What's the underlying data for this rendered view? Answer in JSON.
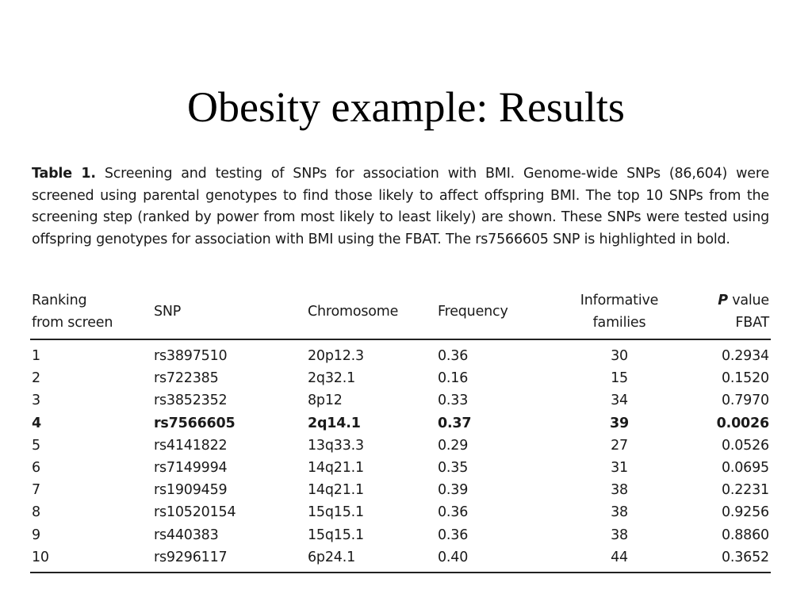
{
  "title": "Obesity example: Results",
  "caption": {
    "label": "Table 1.",
    "text": "Screening and testing of SNPs for association with BMI. Genome-wide SNPs (86,604) were screened using parental genotypes to find those likely to affect offspring BMI. The top 10 SNPs from the screening step (ranked by power from most likely to least likely) are shown. These SNPs were tested using offspring genotypes for association with BMI using the FBAT. The rs7566605 SNP is highlighted in bold."
  },
  "table": {
    "headers": {
      "ranking_line1": "Ranking",
      "ranking_line2": "from screen",
      "snp": "SNP",
      "chromosome": "Chromosome",
      "frequency": "Frequency",
      "families_line1": "Informative",
      "families_line2": "families",
      "pvalue_p": "P",
      "pvalue_line1_rest": " value",
      "pvalue_line2": "FBAT"
    },
    "rows": [
      {
        "rank": "1",
        "snp": "rs3897510",
        "chromosome": "20p12.3",
        "frequency": "0.36",
        "families": "30",
        "pvalue": "0.2934"
      },
      {
        "rank": "2",
        "snp": "rs722385",
        "chromosome": "2q32.1",
        "frequency": "0.16",
        "families": "15",
        "pvalue": "0.1520"
      },
      {
        "rank": "3",
        "snp": "rs3852352",
        "chromosome": "8p12",
        "frequency": "0.33",
        "families": "34",
        "pvalue": "0.7970"
      },
      {
        "rank": "4",
        "snp": "rs7566605",
        "chromosome": "2q14.1",
        "frequency": "0.37",
        "families": "39",
        "pvalue": "0.0026"
      },
      {
        "rank": "5",
        "snp": "rs4141822",
        "chromosome": "13q33.3",
        "frequency": "0.29",
        "families": "27",
        "pvalue": "0.0526"
      },
      {
        "rank": "6",
        "snp": "rs7149994",
        "chromosome": "14q21.1",
        "frequency": "0.35",
        "families": "31",
        "pvalue": "0.0695"
      },
      {
        "rank": "7",
        "snp": "rs1909459",
        "chromosome": "14q21.1",
        "frequency": "0.39",
        "families": "38",
        "pvalue": "0.2231"
      },
      {
        "rank": "8",
        "snp": "rs10520154",
        "chromosome": "15q15.1",
        "frequency": "0.36",
        "families": "38",
        "pvalue": "0.9256"
      },
      {
        "rank": "9",
        "snp": "rs440383",
        "chromosome": "15q15.1",
        "frequency": "0.36",
        "families": "38",
        "pvalue": "0.8860"
      },
      {
        "rank": "10",
        "snp": "rs9296117",
        "chromosome": "6p24.1",
        "frequency": "0.40",
        "families": "44",
        "pvalue": "0.3652"
      }
    ]
  }
}
